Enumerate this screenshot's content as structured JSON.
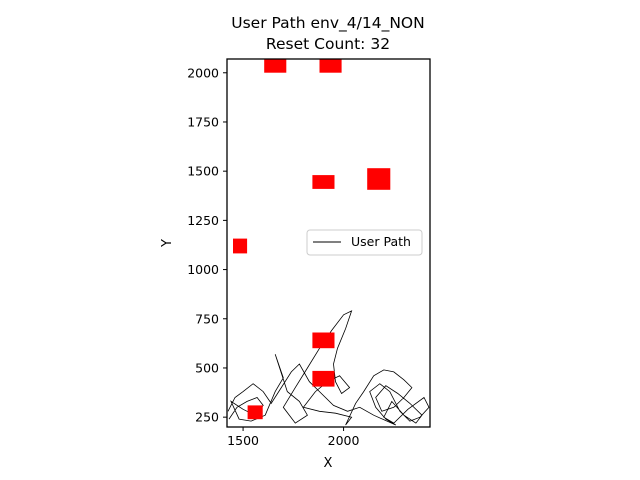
{
  "chart_data": {
    "type": "line",
    "title": "User Path env_4/14_NON",
    "subtitle": "Reset Count: 32",
    "xlabel": "X",
    "ylabel": "Y",
    "xlim": [
      1420,
      2430
    ],
    "ylim": [
      200,
      2070
    ],
    "x_ticks": [
      1500,
      2000
    ],
    "y_ticks": [
      250,
      500,
      750,
      1000,
      1250,
      1500,
      1750,
      2000
    ],
    "legend": {
      "entries": [
        "User Path"
      ],
      "placement": "center-right"
    },
    "path_color": "#000000",
    "obstacle_color": "#ff0000",
    "obstacles": [
      {
        "x": 1660,
        "y": 2040,
        "w": 110,
        "h": 80
      },
      {
        "x": 1935,
        "y": 2040,
        "w": 110,
        "h": 80
      },
      {
        "x": 1900,
        "y": 1445,
        "w": 110,
        "h": 70
      },
      {
        "x": 2175,
        "y": 1460,
        "w": 115,
        "h": 110
      },
      {
        "x": 1485,
        "y": 1120,
        "w": 70,
        "h": 75
      },
      {
        "x": 1900,
        "y": 640,
        "w": 110,
        "h": 80
      },
      {
        "x": 1900,
        "y": 445,
        "w": 110,
        "h": 80
      },
      {
        "x": 1560,
        "y": 275,
        "w": 75,
        "h": 70
      }
    ],
    "series": [
      {
        "name": "User Path",
        "points": [
          [
            1430,
            240
          ],
          [
            1470,
            300
          ],
          [
            1520,
            330
          ],
          [
            1570,
            350
          ],
          [
            1600,
            310
          ],
          [
            1560,
            260
          ],
          [
            1500,
            290
          ],
          [
            1440,
            330
          ],
          [
            1480,
            240
          ],
          [
            1540,
            230
          ],
          [
            1610,
            260
          ],
          [
            1660,
            380
          ],
          [
            1700,
            450
          ],
          [
            1660,
            570
          ],
          [
            1720,
            380
          ],
          [
            1780,
            330
          ],
          [
            1820,
            260
          ],
          [
            1760,
            220
          ],
          [
            1700,
            300
          ],
          [
            1760,
            400
          ],
          [
            1820,
            500
          ],
          [
            1880,
            600
          ],
          [
            1940,
            690
          ],
          [
            2000,
            770
          ],
          [
            2040,
            790
          ],
          [
            2010,
            700
          ],
          [
            1970,
            600
          ],
          [
            1950,
            520
          ],
          [
            1960,
            430
          ],
          [
            1990,
            370
          ],
          [
            2030,
            400
          ],
          [
            1980,
            460
          ],
          [
            1920,
            430
          ],
          [
            1860,
            380
          ],
          [
            1800,
            300
          ],
          [
            1880,
            280
          ],
          [
            1960,
            270
          ],
          [
            2040,
            250
          ],
          [
            2010,
            210
          ],
          [
            2060,
            320
          ],
          [
            2100,
            380
          ],
          [
            2150,
            460
          ],
          [
            2200,
            490
          ],
          [
            2250,
            480
          ],
          [
            2300,
            440
          ],
          [
            2340,
            400
          ],
          [
            2300,
            350
          ],
          [
            2250,
            300
          ],
          [
            2190,
            280
          ],
          [
            2160,
            350
          ],
          [
            2210,
            410
          ],
          [
            2270,
            370
          ],
          [
            2330,
            320
          ],
          [
            2390,
            260
          ],
          [
            2360,
            220
          ],
          [
            2300,
            260
          ],
          [
            2240,
            330
          ],
          [
            2200,
            250
          ],
          [
            2250,
            220
          ],
          [
            2320,
            290
          ],
          [
            2400,
            350
          ],
          [
            2425,
            300
          ],
          [
            2380,
            250
          ],
          [
            2330,
            230
          ],
          [
            2280,
            280
          ],
          [
            2230,
            380
          ],
          [
            2180,
            420
          ],
          [
            2130,
            380
          ],
          [
            2160,
            300
          ],
          [
            2210,
            240
          ],
          [
            2260,
            210
          ],
          [
            2150,
            260
          ],
          [
            2080,
            300
          ],
          [
            2020,
            280
          ],
          [
            1950,
            310
          ],
          [
            1880,
            380
          ],
          [
            1830,
            430
          ],
          [
            1780,
            520
          ],
          [
            1740,
            480
          ],
          [
            1690,
            400
          ],
          [
            1640,
            320
          ],
          [
            1600,
            380
          ],
          [
            1550,
            420
          ],
          [
            1500,
            380
          ],
          [
            1460,
            350
          ],
          [
            1425,
            280
          ]
        ]
      }
    ]
  }
}
